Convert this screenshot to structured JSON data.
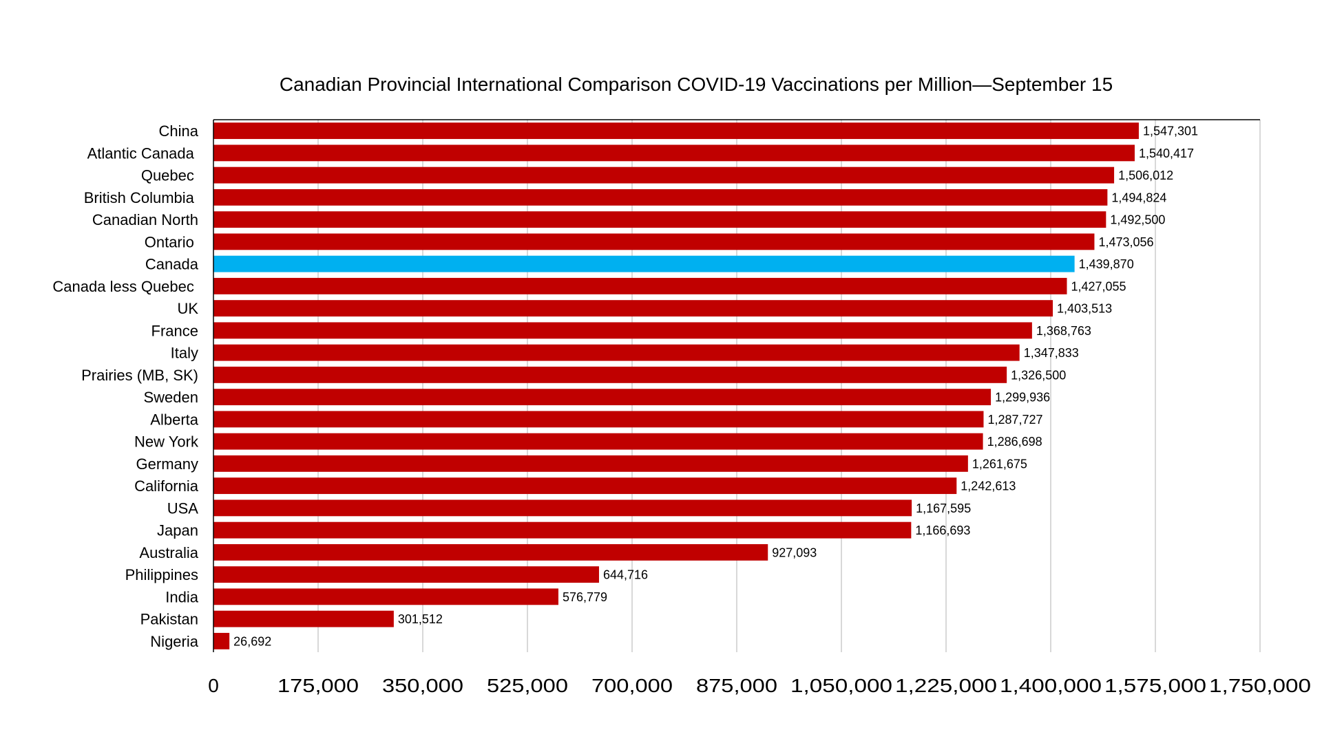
{
  "chart_data": {
    "type": "bar",
    "orientation": "horizontal",
    "title": "Canadian Provincial International Comparison COVID-19 Vaccinations per Million—September 15",
    "xlabel": "",
    "ylabel": "",
    "xlim": [
      0,
      1750000
    ],
    "x_ticks": [
      0,
      175000,
      350000,
      525000,
      700000,
      875000,
      1050000,
      1225000,
      1400000,
      1575000,
      1750000
    ],
    "x_tick_labels": [
      "0",
      "175,000",
      "350,000",
      "525,000",
      "700,000",
      "875,000",
      "1,050,000",
      "1,225,000",
      "1,400,000",
      "1,575,000",
      "1,750,000"
    ],
    "grid": "vertical",
    "legend": "none",
    "colors": {
      "default": "#C00000",
      "highlight": "#00B0F0",
      "gridline": "#BFBFBF",
      "axis": "#000000"
    },
    "highlight_category": "Canada",
    "categories": [
      "China",
      "Atlantic Canada ",
      "Quebec ",
      "British Columbia ",
      "Canadian North",
      "Ontario ",
      "Canada",
      "Canada less Quebec ",
      "UK",
      "France",
      "Italy",
      "Prairies (MB, SK)",
      "Sweden",
      "Alberta",
      "New York",
      "Germany",
      "California",
      "USA",
      "Japan",
      "Australia",
      "Philippines",
      "India",
      "Pakistan",
      "Nigeria"
    ],
    "values": [
      1547301,
      1540417,
      1506012,
      1494824,
      1492500,
      1473056,
      1439870,
      1427055,
      1403513,
      1368763,
      1347833,
      1326500,
      1299936,
      1287727,
      1286698,
      1261675,
      1242613,
      1167595,
      1166693,
      927093,
      644716,
      576779,
      301512,
      26692
    ],
    "value_labels": [
      "1,547,301",
      "1,540,417",
      "1,506,012",
      "1,494,824",
      "1,492,500",
      "1,473,056",
      "1,439,870",
      "1,427,055",
      "1,403,513",
      "1,368,763",
      "1,347,833",
      "1,326,500",
      "1,299,936",
      "1,287,727",
      "1,286,698",
      "1,261,675",
      "1,242,613",
      "1,167,595",
      "1,166,693",
      "927,093",
      "644,716",
      "576,779",
      "301,512",
      "26,692"
    ]
  }
}
